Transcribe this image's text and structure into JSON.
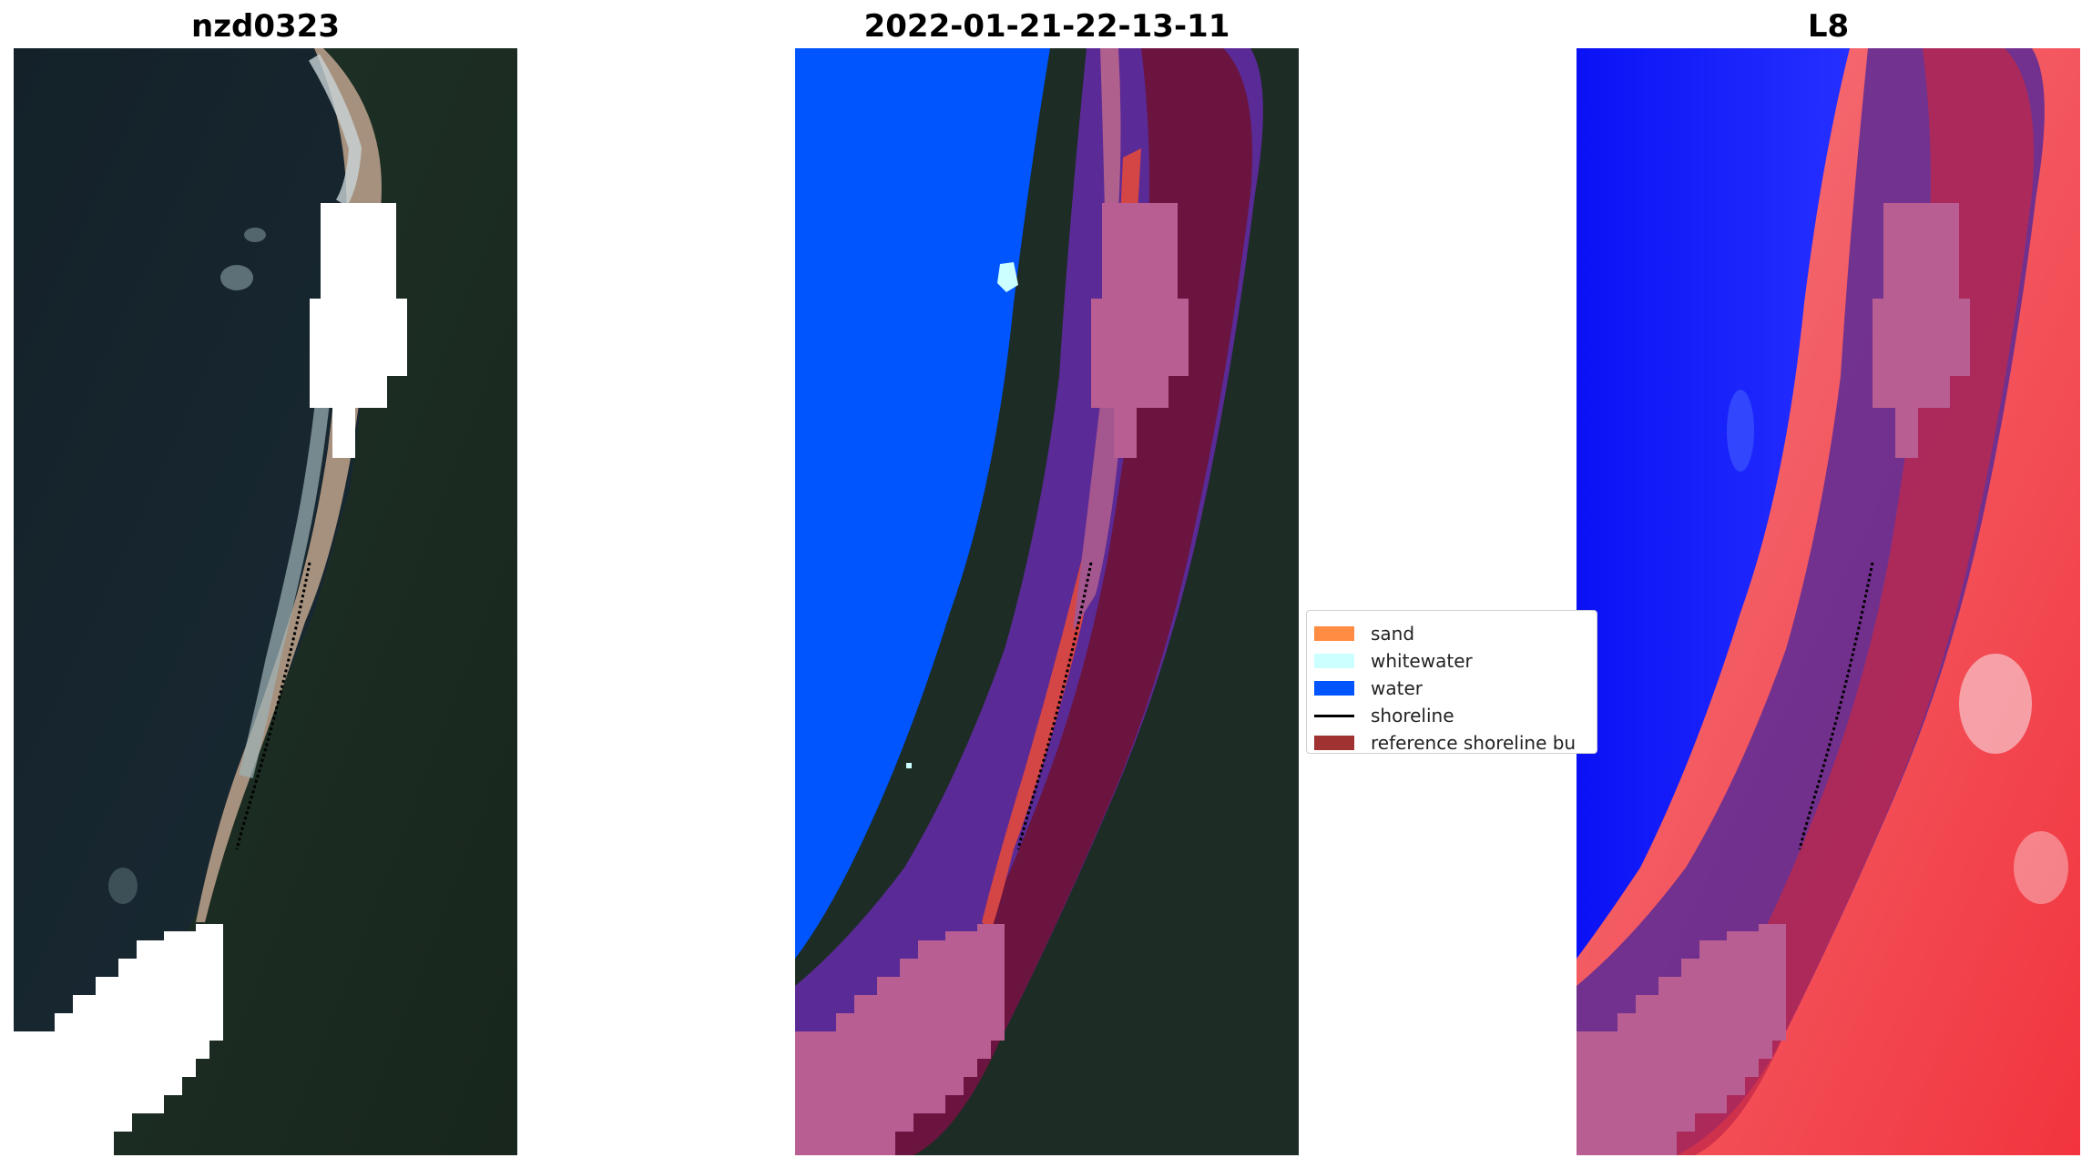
{
  "panels": [
    {
      "title": "nzd0323",
      "kind": "rgb-with-cloud-mask"
    },
    {
      "title": "2022-01-21-22-13-11",
      "kind": "classified"
    },
    {
      "title": "L8",
      "kind": "mndwi-index"
    }
  ],
  "legend": {
    "items": [
      {
        "label": "sand",
        "color": "#ff8c42"
      },
      {
        "label": "whitewater",
        "color": "#ccffff"
      },
      {
        "label": "water",
        "color": "#0055ff"
      },
      {
        "label": "shoreline",
        "color": "#000000"
      },
      {
        "label": "reference shoreline bu",
        "color": "#a03232"
      }
    ]
  },
  "colors": {
    "ocean": "#15252e",
    "land": "#1c2b22",
    "cloud_mask": "#ffffff",
    "water_class": "#0055ff",
    "buffer_purple": "#5a2a96",
    "buffer_dark": "#6a1236",
    "mask_pink": "#b85e92",
    "sand_red": "#d44545",
    "index_blue": "#0a14ff",
    "index_red": "#f23040"
  }
}
